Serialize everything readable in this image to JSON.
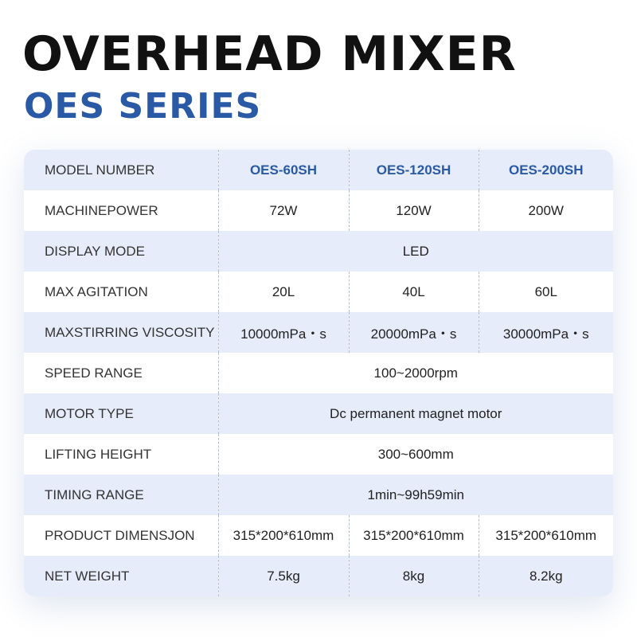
{
  "header": {
    "title": "OVERHEAD MIXER",
    "subtitle": "OES SERIES"
  },
  "colors": {
    "title": "#111111",
    "accent_blue": "#2a5aa5",
    "row_tint": "#e6ecf9",
    "row_white": "#ffffff"
  },
  "table": {
    "header": {
      "label": "MODEL NUMBER",
      "models": [
        "OES-60SH",
        "OES-120SH",
        "OES-200SH"
      ]
    },
    "rows": [
      {
        "label": "MACHINEPOWER",
        "values": [
          "72W",
          "120W",
          "200W"
        ]
      },
      {
        "label": "DISPLAY MODE",
        "value": "LED"
      },
      {
        "label": "MAX AGITATION",
        "values": [
          "20L",
          "40L",
          "60L"
        ]
      },
      {
        "label": "MAXSTIRRING VISCOSITY",
        "values": [
          "10000mPa・s",
          "20000mPa・s",
          "30000mPa・s"
        ]
      },
      {
        "label": "SPEED RANGE",
        "value": "100~2000rpm"
      },
      {
        "label": "MOTOR TYPE",
        "value": "Dc permanent magnet motor"
      },
      {
        "label": "LIFTING HEIGHT",
        "value": "300~600mm"
      },
      {
        "label": "TIMING RANGE",
        "value": "1min~99h59min"
      },
      {
        "label": "PRODUCT DIMENSJON",
        "values": [
          "315*200*610mm",
          "315*200*610mm",
          "315*200*610mm"
        ]
      },
      {
        "label": "NET WEIGHT",
        "values": [
          "7.5kg",
          "8kg",
          "8.2kg"
        ]
      }
    ]
  }
}
